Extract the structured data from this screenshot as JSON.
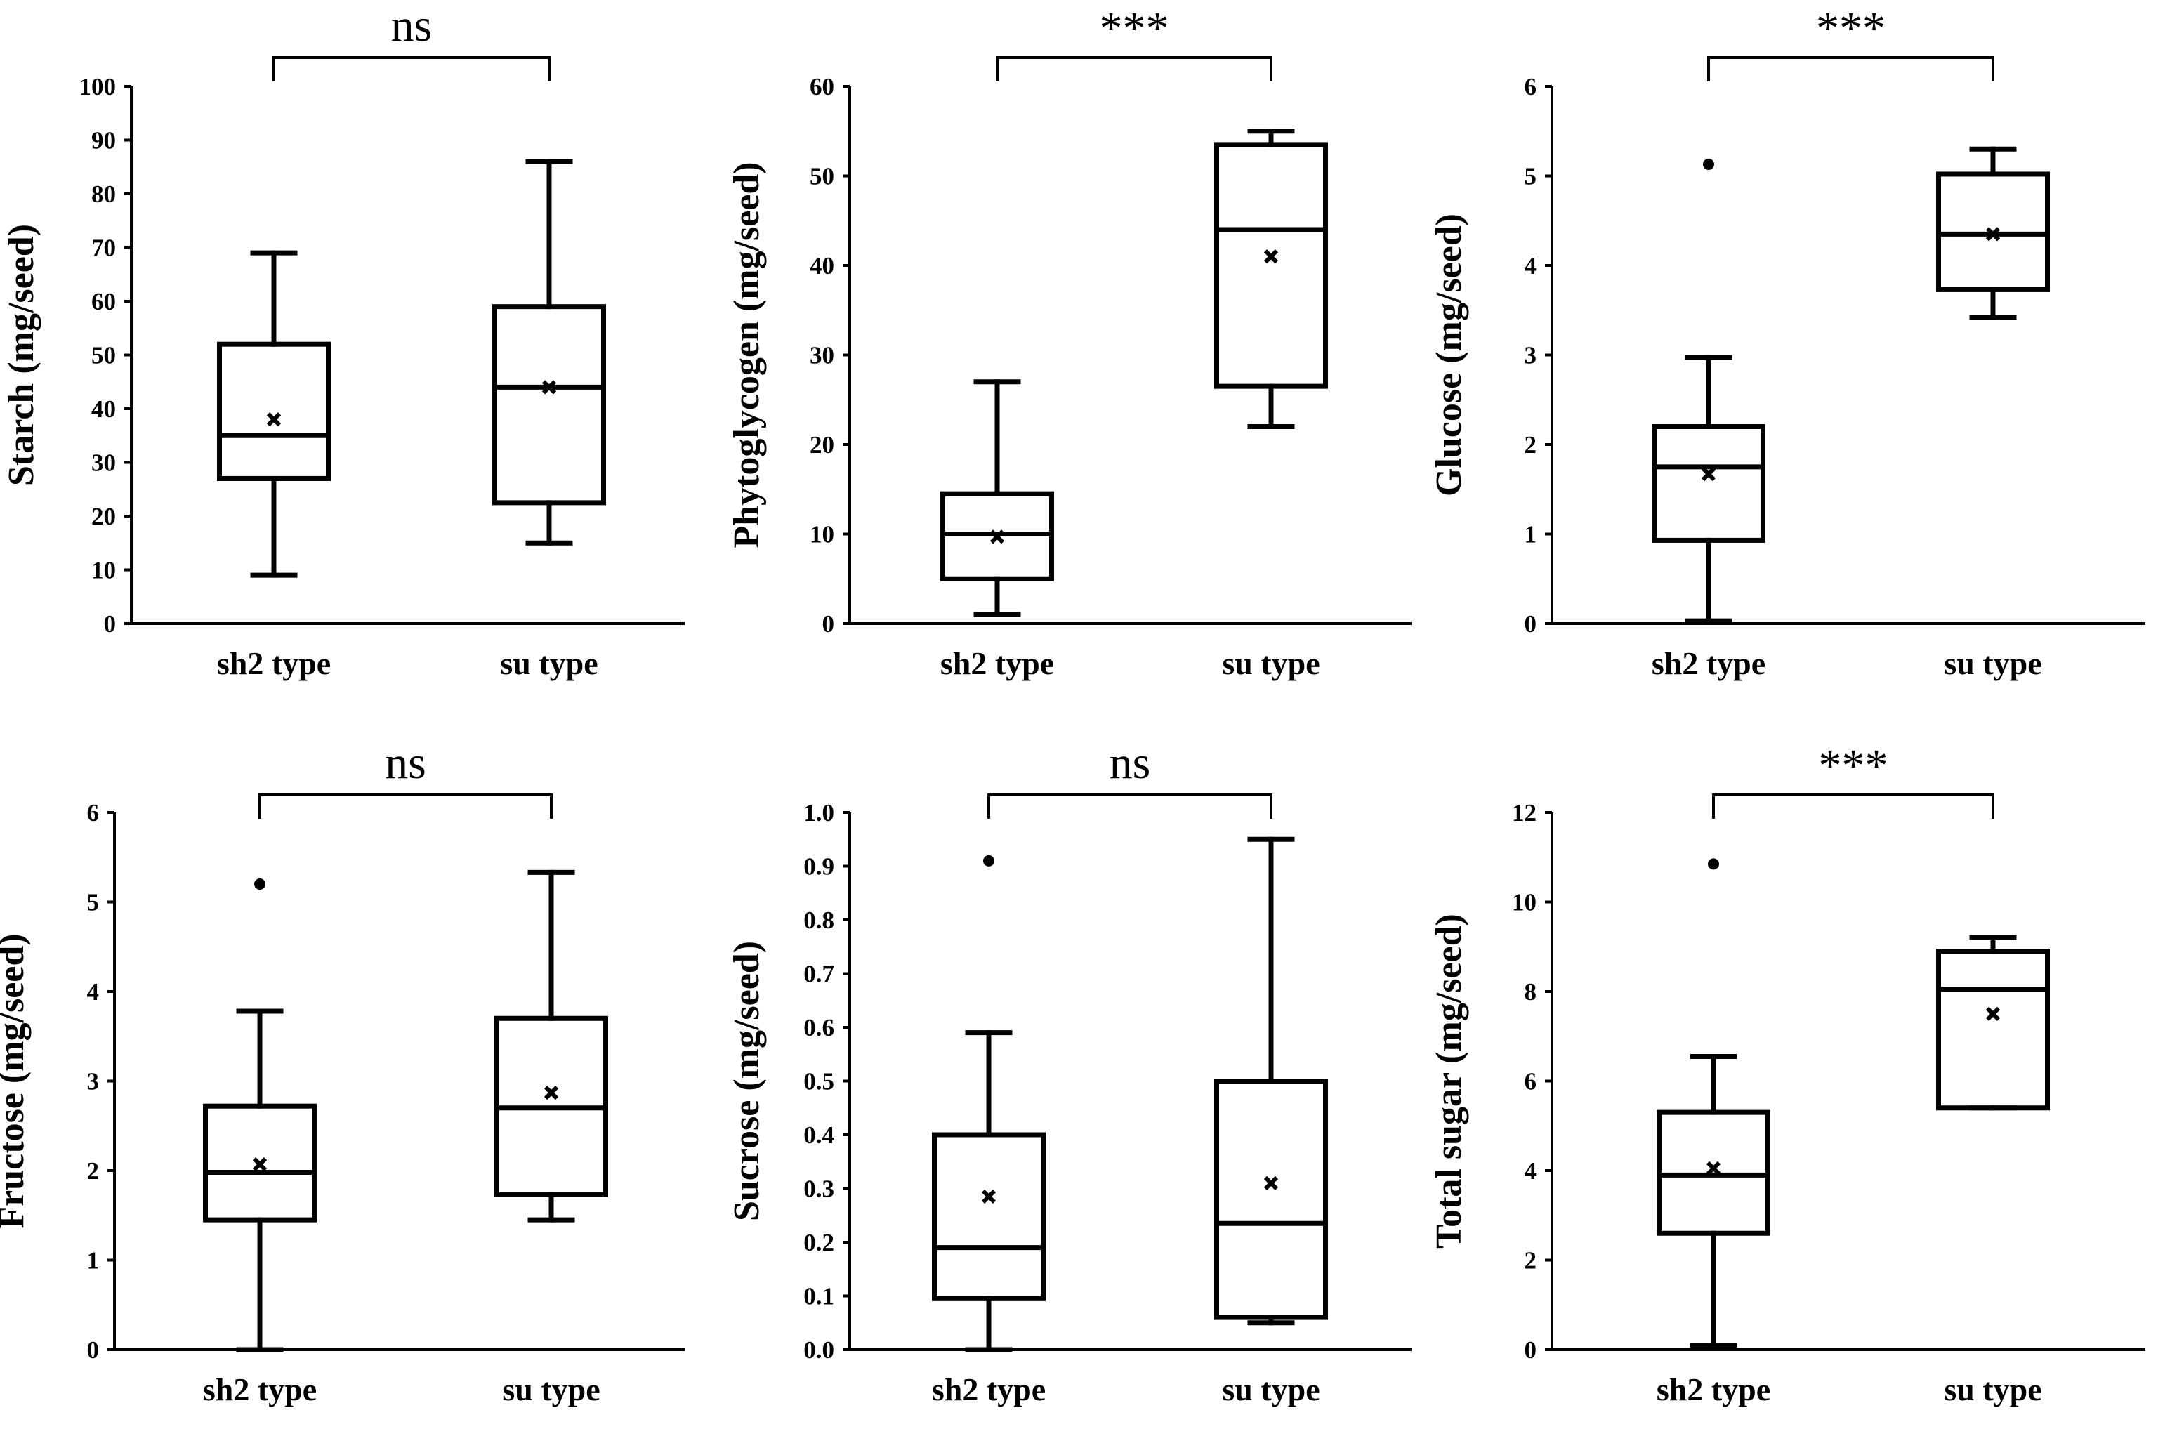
{
  "chart_data": [
    {
      "type": "box",
      "ylabel": "Starch (mg/seed)",
      "ylim": [
        0,
        100
      ],
      "yticks": [
        0,
        10,
        20,
        30,
        40,
        50,
        60,
        70,
        80,
        90,
        100
      ],
      "ytick_labels": [
        "0",
        "10",
        "20",
        "30",
        "40",
        "50",
        "60",
        "70",
        "80",
        "90",
        "100"
      ],
      "categories": [
        "sh2 type",
        "su type"
      ],
      "significance": "ns",
      "boxes": [
        {
          "min": 9,
          "q1": 27,
          "median": 35,
          "q3": 52,
          "max": 69,
          "mean": 38,
          "outliers": []
        },
        {
          "min": 15,
          "q1": 22.5,
          "median": 44,
          "q3": 59,
          "max": 86,
          "mean": 44,
          "outliers": []
        }
      ]
    },
    {
      "type": "box",
      "ylabel": "Phytoglycogen (mg/seed)",
      "ylim": [
        0,
        60
      ],
      "yticks": [
        0,
        10,
        20,
        30,
        40,
        50,
        60
      ],
      "ytick_labels": [
        "0",
        "10",
        "20",
        "30",
        "40",
        "50",
        "60"
      ],
      "categories": [
        "sh2 type",
        "su type"
      ],
      "significance": "***",
      "boxes": [
        {
          "min": 1,
          "q1": 5,
          "median": 10,
          "q3": 14.5,
          "max": 27,
          "mean": 9.7,
          "outliers": []
        },
        {
          "min": 22,
          "q1": 26.5,
          "median": 44,
          "q3": 53.5,
          "max": 55,
          "mean": 41,
          "outliers": []
        }
      ]
    },
    {
      "type": "box",
      "ylabel": "Glucose (mg/seed)",
      "ylim": [
        0,
        6
      ],
      "yticks": [
        0,
        1,
        2,
        3,
        4,
        5,
        6
      ],
      "ytick_labels": [
        "0",
        "1",
        "2",
        "3",
        "4",
        "5",
        "6"
      ],
      "categories": [
        "sh2 type",
        "su type"
      ],
      "significance": "***",
      "boxes": [
        {
          "min": 0.03,
          "q1": 0.93,
          "median": 1.75,
          "q3": 2.2,
          "max": 2.97,
          "mean": 1.67,
          "outliers": [
            5.13
          ]
        },
        {
          "min": 3.42,
          "q1": 3.73,
          "median": 4.35,
          "q3": 5.02,
          "max": 5.3,
          "mean": 4.35,
          "outliers": []
        }
      ]
    },
    {
      "type": "box",
      "ylabel": "Fructose (mg/seed)",
      "ylim": [
        0,
        6
      ],
      "yticks": [
        0,
        1,
        2,
        3,
        4,
        5,
        6
      ],
      "ytick_labels": [
        "0",
        "1",
        "2",
        "3",
        "4",
        "5",
        "6"
      ],
      "categories": [
        "sh2 type",
        "su type"
      ],
      "significance": "ns",
      "boxes": [
        {
          "min": 0,
          "q1": 1.45,
          "median": 1.98,
          "q3": 2.72,
          "max": 3.78,
          "mean": 2.07,
          "outliers": [
            5.2
          ]
        },
        {
          "min": 1.45,
          "q1": 1.73,
          "median": 2.7,
          "q3": 3.7,
          "max": 5.33,
          "mean": 2.87,
          "outliers": []
        }
      ]
    },
    {
      "type": "box",
      "ylabel": "Sucrose (mg/seed)",
      "ylim": [
        0,
        1.0
      ],
      "yticks": [
        0,
        0.1,
        0.2,
        0.3,
        0.4,
        0.5,
        0.6,
        0.7,
        0.8,
        0.9,
        1.0
      ],
      "ytick_labels": [
        "0.0",
        "0.1",
        "0.2",
        "0.3",
        "0.4",
        "0.5",
        "0.6",
        "0.7",
        "0.8",
        "0.9",
        "1.0"
      ],
      "categories": [
        "sh2 type",
        "su type"
      ],
      "significance": "ns",
      "boxes": [
        {
          "min": 0,
          "q1": 0.095,
          "median": 0.19,
          "q3": 0.4,
          "max": 0.59,
          "mean": 0.285,
          "outliers": [
            0.91
          ]
        },
        {
          "min": 0.05,
          "q1": 0.06,
          "median": 0.235,
          "q3": 0.5,
          "max": 0.95,
          "mean": 0.31,
          "outliers": []
        }
      ]
    },
    {
      "type": "box",
      "ylabel": "Total sugar (mg/seed)",
      "ylim": [
        0,
        12
      ],
      "yticks": [
        0,
        2,
        4,
        6,
        8,
        10,
        12
      ],
      "ytick_labels": [
        "0",
        "2",
        "4",
        "6",
        "8",
        "10",
        "12"
      ],
      "categories": [
        "sh2 type",
        "su type"
      ],
      "significance": "***",
      "boxes": [
        {
          "min": 0.1,
          "q1": 2.6,
          "median": 3.9,
          "q3": 5.3,
          "max": 6.55,
          "mean": 4.05,
          "outliers": [
            10.85
          ]
        },
        {
          "min": 5.4,
          "q1": 5.4,
          "median": 8.05,
          "q3": 8.9,
          "max": 9.2,
          "mean": 7.5,
          "outliers": []
        }
      ]
    }
  ]
}
